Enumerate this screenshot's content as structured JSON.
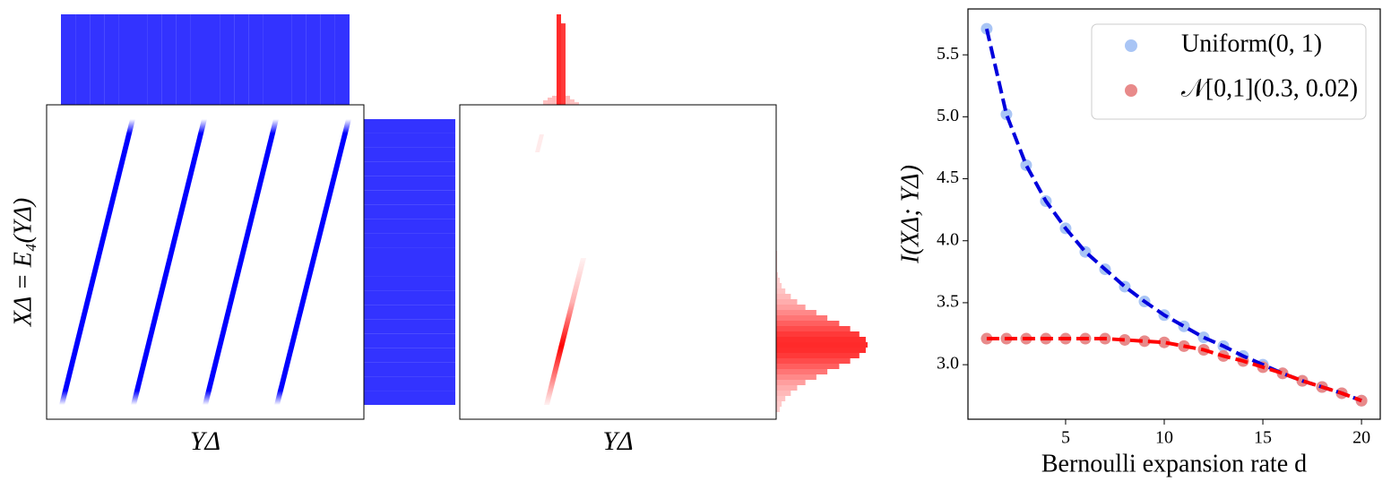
{
  "chart_data": [
    {
      "type": "joint",
      "color": "#0000ff",
      "hist_color": "#3333ff",
      "xlabel": "YΔ",
      "ylabel": "XΔ = E₄(YΔ)",
      "top_hist": [
        1,
        1,
        1,
        1,
        1,
        1,
        1,
        1,
        1,
        1,
        1,
        1,
        1,
        1,
        1,
        1,
        1,
        1,
        1,
        1
      ],
      "right_hist": [
        1,
        1,
        1,
        1,
        1,
        1,
        1,
        1,
        1,
        1,
        1,
        1,
        1,
        1,
        1,
        1,
        1,
        1,
        1,
        1
      ]
    },
    {
      "type": "joint",
      "color": "#ff0000",
      "hist_color": "#ff2a2a",
      "xlabel": "YΔ",
      "top_hist": [
        0.05,
        0.08,
        0.1,
        1,
        0.9,
        0.1,
        0.06,
        0.03
      ],
      "right_hist": [
        0.01,
        0.01,
        0.01,
        0.01,
        0.02,
        0.04,
        0.06,
        0.1,
        0.16,
        0.23,
        0.32,
        0.44,
        0.56,
        0.69,
        0.81,
        0.91,
        0.98,
        1,
        0.98,
        0.91,
        0.81,
        0.69,
        0.56,
        0.44,
        0.32,
        0.23,
        0.16,
        0.1,
        0.06,
        0.04
      ]
    },
    {
      "type": "scatter",
      "xlabel": "Bernoulli expansion rate d",
      "ylabel": "I(XΔ; YΔ)",
      "x": [
        1,
        2,
        3,
        4,
        5,
        6,
        7,
        8,
        9,
        10,
        11,
        12,
        13,
        14,
        15,
        16,
        17,
        18,
        19,
        20
      ],
      "series": [
        {
          "name": "Uniform(0, 1)",
          "color": "#a9c5f5",
          "line_color": "#0000dd",
          "line_style": "dashed",
          "values": [
            5.71,
            5.02,
            4.61,
            4.32,
            4.1,
            3.91,
            3.77,
            3.63,
            3.51,
            3.4,
            3.31,
            3.22,
            3.15,
            3.07,
            3.0,
            2.93,
            2.87,
            2.82,
            2.77,
            2.71
          ]
        },
        {
          "name": "𝒩[0,1](0.3, 0.02)",
          "color": "#e88a8a",
          "line_color": "#ff0000",
          "line_style": "dashed",
          "values": [
            3.21,
            3.21,
            3.21,
            3.21,
            3.21,
            3.21,
            3.21,
            3.2,
            3.19,
            3.18,
            3.15,
            3.12,
            3.07,
            3.03,
            2.98,
            2.93,
            2.87,
            2.82,
            2.77,
            2.71
          ]
        }
      ],
      "xlim": [
        0.05,
        20.95
      ],
      "ylim": [
        2.56,
        5.87
      ],
      "xticks": [
        5,
        10,
        15,
        20
      ],
      "yticks": [
        {
          "value": 3,
          "label": "3.0"
        },
        3.5,
        {
          "value": 4,
          "label": "4.0"
        },
        4.5,
        {
          "value": 5,
          "label": "5.0"
        },
        5.5
      ],
      "legend": "upper right"
    }
  ]
}
